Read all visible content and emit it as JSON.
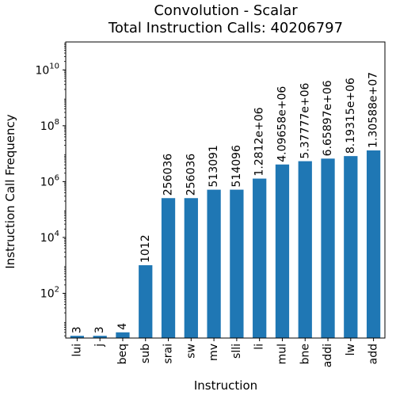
{
  "chart_data": {
    "type": "bar",
    "title": "Convolution - Scalar",
    "subtitle": "Total Instruction Calls: 40206797",
    "xlabel": "Instruction",
    "ylabel": "Instruction Call Frequency",
    "yscale": "log",
    "ylim": [
      2.5,
      100000000000.0
    ],
    "grid": false,
    "legend": "none",
    "bar_color": "#1f77b4",
    "categories": [
      "lui",
      "j",
      "beq",
      "sub",
      "srai",
      "sw",
      "mv",
      "slli",
      "li",
      "mul",
      "bne",
      "addi",
      "lw",
      "add"
    ],
    "values": [
      3,
      3,
      4,
      1012,
      256036,
      256036,
      513091,
      514096,
      1281200,
      4096580,
      5377770,
      6658970,
      8193150,
      13058800
    ],
    "value_labels": [
      "3",
      "3",
      "4",
      "1012",
      "256036",
      "256036",
      "513091",
      "514096",
      "1.2812e+06",
      "4.09658e+06",
      "5.37777e+06",
      "6.65897e+06",
      "8.19315e+06",
      "1.30588e+07"
    ],
    "y_ticks": [
      {
        "value": 100,
        "base": "10",
        "exp": "2"
      },
      {
        "value": 10000,
        "base": "10",
        "exp": "4"
      },
      {
        "value": 1000000,
        "base": "10",
        "exp": "6"
      },
      {
        "value": 100000000,
        "base": "10",
        "exp": "8"
      },
      {
        "value": 10000000000,
        "base": "10",
        "exp": "10"
      }
    ]
  }
}
